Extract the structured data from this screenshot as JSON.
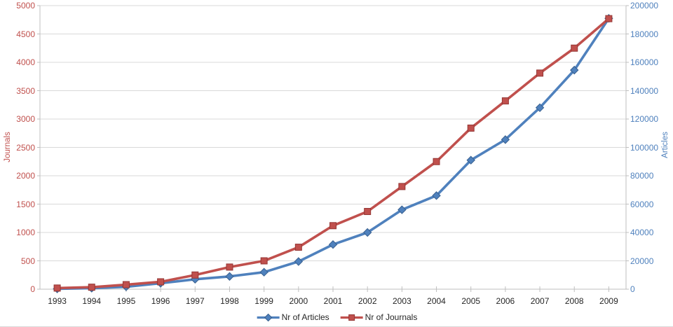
{
  "chart_data": {
    "type": "line",
    "title": "",
    "categories": [
      "1993",
      "1994",
      "1995",
      "1996",
      "1997",
      "1998",
      "1999",
      "2000",
      "2001",
      "2002",
      "2003",
      "2004",
      "2005",
      "2006",
      "2007",
      "2008",
      "2009"
    ],
    "series": [
      {
        "name": "Nr of Articles",
        "slug": "articles",
        "axis": "right",
        "color": "#4F81BD",
        "marker_edge": "#38608F",
        "marker": "diamond",
        "values": [
          250,
          700,
          1700,
          4200,
          7000,
          9000,
          12000,
          19500,
          31500,
          40000,
          56000,
          66000,
          91000,
          105500,
          128000,
          154500,
          191000
        ]
      },
      {
        "name": "Nr of Journals",
        "slug": "journals",
        "axis": "left",
        "color": "#C0504D",
        "marker_edge": "#943634",
        "marker": "square",
        "values": [
          20,
          35,
          80,
          130,
          250,
          390,
          500,
          740,
          1120,
          1370,
          1810,
          2250,
          2840,
          3320,
          3810,
          4250,
          4770
        ]
      }
    ],
    "left_axis": {
      "title": "Journals",
      "min": 0,
      "max": 5000,
      "step": 500,
      "color": "#C0504D"
    },
    "right_axis": {
      "title": "Articles",
      "min": 0,
      "max": 200000,
      "step": 20000,
      "color": "#4F81BD"
    },
    "grid": true,
    "gridline_color": "#D9D9D9",
    "axisline_color": "#BFBFBF",
    "legend_position": "bottom"
  }
}
